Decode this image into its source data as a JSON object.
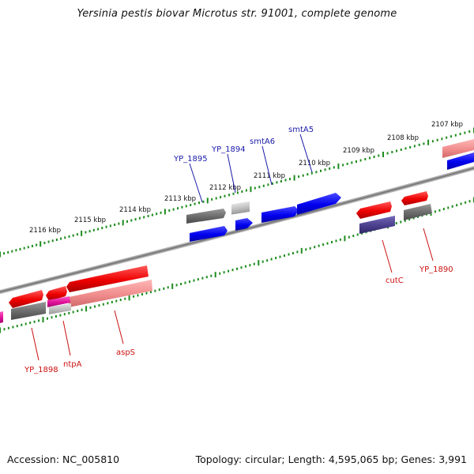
{
  "title": "Yersinia pestis biovar Microtus str. 91001, complete genome",
  "footer": {
    "accession": "Accession: NC_005810",
    "summary": "Topology: circular; Length: 4,595,065 bp; Genes: 3,991"
  },
  "colors": {
    "backbone": "#8a8a8a",
    "tick": "#1e8c1e",
    "forward_gene": "#0000ee",
    "reverse_gene": "#ee0000",
    "forward_label": "#1a1aa8",
    "reverse_label": "#cc1111",
    "pseudo_gray": "#6e6e6e",
    "light_gray": "#b8b8b8",
    "magenta": "#e0109a",
    "pink": "#f08c8c",
    "indigo": "#4a3f8c"
  },
  "axis": {
    "unit": "kbp",
    "positions": [
      {
        "label": "2107 kbp",
        "kbp": 2107
      },
      {
        "label": "2108 kbp",
        "kbp": 2108
      },
      {
        "label": "2109 kbp",
        "kbp": 2109
      },
      {
        "label": "2110 kbp",
        "kbp": 2110
      },
      {
        "label": "2111 kbp",
        "kbp": 2111
      },
      {
        "label": "2112 kbp",
        "kbp": 2112
      },
      {
        "label": "2113 kbp",
        "kbp": 2113
      },
      {
        "label": "2114 kbp",
        "kbp": 2114
      },
      {
        "label": "2115 kbp",
        "kbp": 2115
      },
      {
        "label": "2116 kbp",
        "kbp": 2116
      }
    ]
  },
  "features": [
    {
      "label": "YP_1895",
      "strand": "forward",
      "color_key": "forward_label"
    },
    {
      "label": "YP_1894",
      "strand": "forward",
      "color_key": "forward_label"
    },
    {
      "label": "smtA6",
      "strand": "forward",
      "color_key": "forward_label"
    },
    {
      "label": "smtA5",
      "strand": "forward",
      "color_key": "forward_label"
    },
    {
      "label": "cutC",
      "strand": "reverse",
      "color_key": "reverse_label"
    },
    {
      "label": "YP_1890",
      "strand": "reverse",
      "color_key": "reverse_label"
    },
    {
      "label": "YP_1898",
      "strand": "reverse",
      "color_key": "reverse_label"
    },
    {
      "label": "ntpA",
      "strand": "reverse",
      "color_key": "reverse_label"
    },
    {
      "label": "aspS",
      "strand": "reverse",
      "color_key": "reverse_label"
    }
  ]
}
